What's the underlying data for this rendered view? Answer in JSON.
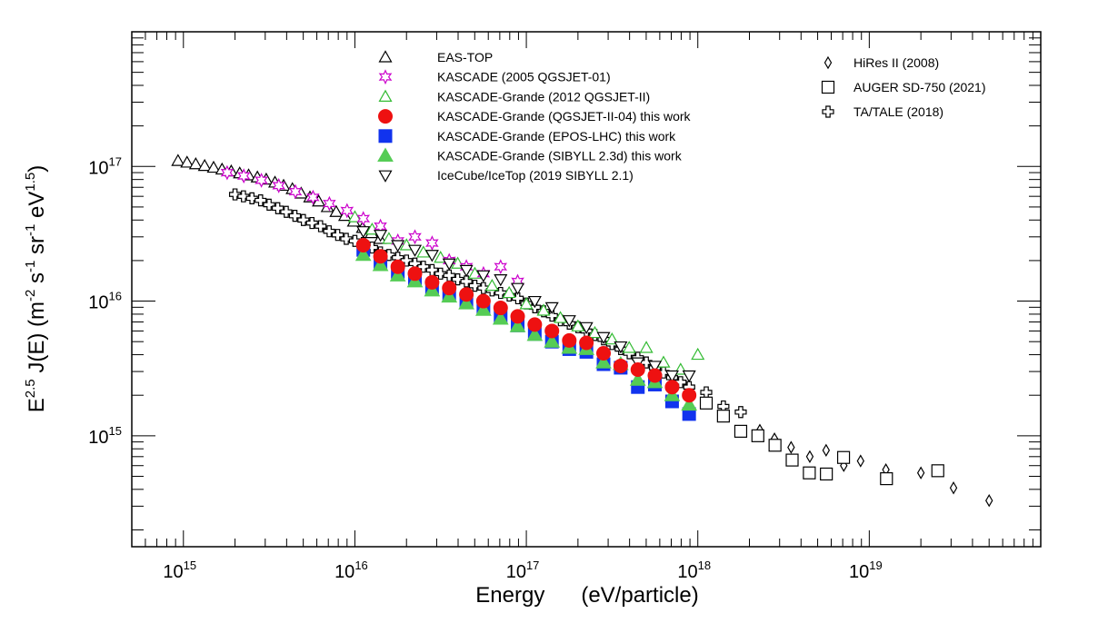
{
  "chart_data": {
    "type": "scatter",
    "title": "",
    "xlabel": "Energy      (eV/particle)",
    "ylabel_parts": {
      "a": "E",
      "b": "2.5",
      "c": " J(E) (m",
      "d": "-2",
      "e": " s",
      "f": "-1",
      "g": " sr",
      "h": "-1",
      "i": " eV",
      "j": "1.5",
      "k": ")"
    },
    "x_scale": "log",
    "y_scale": "log",
    "xlim": [
      500000000000000.0,
      1e+20
    ],
    "ylim": [
      150000000000000.0,
      1e+18
    ],
    "xticks": [
      {
        "value": 1000000000000000.0,
        "base": "10",
        "exp": "15"
      },
      {
        "value": 1e+16,
        "base": "10",
        "exp": "16"
      },
      {
        "value": 1e+17,
        "base": "10",
        "exp": "17"
      },
      {
        "value": 1e+18,
        "base": "10",
        "exp": "18"
      },
      {
        "value": 1e+19,
        "base": "10",
        "exp": "19"
      }
    ],
    "yticks": [
      {
        "value": 1000000000000000.0,
        "base": "10",
        "exp": "15"
      },
      {
        "value": 1e+16,
        "base": "10",
        "exp": "16"
      },
      {
        "value": 1e+17,
        "base": "10",
        "exp": "17"
      }
    ],
    "legend_left": [
      "EAS-TOP",
      "KASCADE (2005 QGSJET-01)",
      "KASCADE-Grande (2012 QGSJET-II)",
      "KASCADE-Grande (QGSJET-II-04) this work",
      "KASCADE-Grande (EPOS-LHC) this work",
      "KASCADE-Grande (SIBYLL 2.3d) this work",
      "IceCube/IceTop (2019 SIBYLL 2.1)"
    ],
    "legend_right": [
      "HiRes II (2008)",
      "AUGER SD-750 (2021)",
      "TA/TALE (2018)"
    ],
    "series": [
      {
        "name": "EAS-TOP",
        "marker": "triangle-up-open",
        "color": "#000000",
        "x": [
          930000000000000.0,
          1050000000000000.0,
          1180000000000000.0,
          1330000000000000.0,
          1500000000000000.0,
          1680000000000000.0,
          1900000000000000.0,
          2130000000000000.0,
          2400000000000000.0,
          2700000000000000.0,
          3040000000000000.0,
          3420000000000000.0,
          3840000000000000.0,
          4320000000000000.0,
          4860000000000000.0,
          5470000000000000.0,
          6150000000000000.0,
          6920000000000000.0,
          7780000000000000.0,
          8750000000000000.0,
          9840000000000000.0,
          1.11e+16,
          1.25e+16,
          1.4e+16
        ],
        "y": [
          1.1e+17,
          1.07e+17,
          1.04e+17,
          1.01e+17,
          9.8e+16,
          9.5e+16,
          9.2e+16,
          8.9e+16,
          8.6e+16,
          8.3e+16,
          8e+16,
          7.6e+16,
          7.2e+16,
          6.8e+16,
          6.3e+16,
          5.9e+16,
          5.5e+16,
          5e+16,
          4.6e+16,
          4.3e+16,
          3.9e+16,
          3.5e+16,
          3.2e+16,
          2.9e+16
        ]
      },
      {
        "name": "KASCADE (2005 QGSJET-01)",
        "marker": "star-open",
        "color": "#cc00cc",
        "x": [
          1800000000000000.0,
          2250000000000000.0,
          2850000000000000.0,
          3600000000000000.0,
          4500000000000000.0,
          5700000000000000.0,
          7100000000000000.0,
          9000000000000000.0,
          1.12e+16,
          1.41e+16,
          1.78e+16,
          2.24e+16,
          2.82e+16,
          3.55e+16,
          4.47e+16,
          5.62e+16,
          7.08e+16,
          8.9e+16
        ],
        "y": [
          9e+16,
          8.5e+16,
          7.9e+16,
          7.2e+16,
          6.5e+16,
          5.9e+16,
          5.3e+16,
          4.7e+16,
          4.1e+16,
          3.6e+16,
          2.8e+16,
          3e+16,
          2.7e+16,
          2e+16,
          1.8e+16,
          1.6e+16,
          1.8e+16,
          1.4e+16
        ]
      },
      {
        "name": "KASCADE-Grande (2012 QGSJET-II)",
        "marker": "triangle-up-open",
        "color": "#33bb33",
        "x": [
          1e+16,
          1.26e+16,
          1.58e+16,
          2e+16,
          2.51e+16,
          3.16e+16,
          3.98e+16,
          5.01e+16,
          6.31e+16,
          7.94e+16,
          1e+17,
          1.26e+17,
          1.58e+17,
          2e+17,
          2.51e+17,
          3.16e+17,
          3.98e+17,
          5.01e+17,
          6.31e+17,
          7.94e+17,
          1e+18
        ],
        "y": [
          4.2e+16,
          3.4e+16,
          2.9e+16,
          2.6e+16,
          2.3e+16,
          2.1e+16,
          1.9e+16,
          1.6e+16,
          1.3e+16,
          1.15e+16,
          9500000000000000.0,
          8500000000000000.0,
          7500000000000000.0,
          6500000000000000.0,
          5800000000000000.0,
          5200000000000000.0,
          4500000000000000.0,
          4500000000000000.0,
          3500000000000000.0,
          3100000000000000.0,
          4000000000000000.0
        ]
      },
      {
        "name": "KASCADE-Grande (QGSJET-II-04) this work",
        "marker": "circle-filled",
        "color": "#ee1111",
        "x": [
          1.12e+16,
          1.41e+16,
          1.78e+16,
          2.24e+16,
          2.82e+16,
          3.55e+16,
          4.47e+16,
          5.62e+16,
          7.08e+16,
          8.9e+16,
          1.12e+17,
          1.41e+17,
          1.78e+17,
          2.24e+17,
          2.82e+17,
          3.55e+17,
          4.47e+17,
          5.62e+17,
          7.08e+17,
          8.9e+17
        ],
        "y": [
          2.6e+16,
          2.15e+16,
          1.8e+16,
          1.6e+16,
          1.38e+16,
          1.25e+16,
          1.12e+16,
          1e+16,
          8900000000000000.0,
          7700000000000000.0,
          6700000000000000.0,
          6000000000000000.0,
          5100000000000000.0,
          4900000000000000.0,
          4100000000000000.0,
          3300000000000000.0,
          3100000000000000.0,
          2800000000000000.0,
          2300000000000000.0,
          2000000000000000.0
        ]
      },
      {
        "name": "KASCADE-Grande (EPOS-LHC) this work",
        "marker": "square-filled",
        "color": "#1133ee",
        "x": [
          1.12e+16,
          1.41e+16,
          1.78e+16,
          2.24e+16,
          2.82e+16,
          3.55e+16,
          4.47e+16,
          5.62e+16,
          7.08e+16,
          8.9e+16,
          1.12e+17,
          1.41e+17,
          1.78e+17,
          2.24e+17,
          2.82e+17,
          3.55e+17,
          4.47e+17,
          5.62e+17,
          7.08e+17,
          8.9e+17
        ],
        "y": [
          2.4e+16,
          1.95e+16,
          1.65e+16,
          1.45e+16,
          1.25e+16,
          1.12e+16,
          1e+16,
          8800000000000000.0,
          7600000000000000.0,
          6600000000000000.0,
          5700000000000000.0,
          5000000000000000.0,
          4400000000000000.0,
          4200000000000000.0,
          3400000000000000.0,
          3200000000000000.0,
          2300000000000000.0,
          2400000000000000.0,
          1800000000000000.0,
          1450000000000000.0
        ]
      },
      {
        "name": "KASCADE-Grande (SIBYLL 2.3d) this work",
        "marker": "triangle-up-filled",
        "color": "#55cc55",
        "x": [
          1.12e+16,
          1.41e+16,
          1.78e+16,
          2.24e+16,
          2.82e+16,
          3.55e+16,
          4.47e+16,
          5.62e+16,
          7.08e+16,
          8.9e+16,
          1.12e+17,
          1.41e+17,
          1.78e+17,
          2.24e+17,
          2.82e+17,
          3.55e+17,
          4.47e+17,
          5.62e+17,
          7.08e+17,
          8.9e+17
        ],
        "y": [
          2.2e+16,
          1.85e+16,
          1.55e+16,
          1.4e+16,
          1.2e+16,
          1.08e+16,
          9600000000000000.0,
          8600000000000000.0,
          7400000000000000.0,
          6500000000000000.0,
          5600000000000000.0,
          5000000000000000.0,
          4500000000000000.0,
          4400000000000000.0,
          3500000000000000.0,
          3400000000000000.0,
          2600000000000000.0,
          2500000000000000.0,
          2000000000000000.0,
          1700000000000000.0
        ]
      },
      {
        "name": "IceCube/IceTop (2019 SIBYLL 2.1)",
        "marker": "triangle-down-open",
        "color": "#000000",
        "x": [
          1.12e+16,
          1.41e+16,
          1.78e+16,
          2.24e+16,
          2.82e+16,
          3.55e+16,
          4.47e+16,
          5.62e+16,
          7.08e+16,
          8.9e+16,
          1.12e+17,
          1.41e+17,
          1.78e+17,
          2.24e+17,
          2.82e+17,
          3.55e+17,
          4.47e+17,
          5.62e+17,
          7.08e+17,
          8.9e+17
        ],
        "y": [
          3.3e+16,
          3.1e+16,
          2.6e+16,
          2.4e+16,
          2.2e+16,
          1.9e+16,
          1.7e+16,
          1.55e+16,
          1.45e+16,
          1.25e+16,
          1e+16,
          9000000000000000.0,
          7200000000000000.0,
          6400000000000000.0,
          5400000000000000.0,
          4600000000000000.0,
          3500000000000000.0,
          3300000000000000.0,
          2800000000000000.0,
          2800000000000000.0
        ]
      },
      {
        "name": "HiRes II (2008)",
        "marker": "diamond-open",
        "color": "#000000",
        "x": [
          2.3e+18,
          2.8e+18,
          3.5e+18,
          4.5e+18,
          5.6e+18,
          7.1e+18,
          8.9e+18,
          1.25e+19,
          2e+19,
          3.1e+19,
          5e+19
        ],
        "y": [
          1100000000000000.0,
          950000000000000.0,
          820000000000000.0,
          700000000000000.0,
          780000000000000.0,
          600000000000000.0,
          650000000000000.0,
          560000000000000.0,
          530000000000000.0,
          410000000000000.0,
          330000000000000.0
        ]
      },
      {
        "name": "AUGER SD-750 (2021)",
        "marker": "square-open",
        "color": "#000000",
        "x": [
          1.12e+18,
          1.41e+18,
          1.78e+18,
          2.24e+18,
          2.82e+18,
          3.55e+18,
          4.47e+18,
          5.62e+18,
          7.08e+18,
          1.26e+19,
          2.51e+19
        ],
        "y": [
          1750000000000000.0,
          1400000000000000.0,
          1080000000000000.0,
          1000000000000000.0,
          850000000000000.0,
          660000000000000.0,
          530000000000000.0,
          520000000000000.0,
          690000000000000.0,
          480000000000000.0,
          550000000000000.0
        ]
      },
      {
        "name": "TA/TALE (2018)",
        "marker": "cross-open",
        "color": "#000000",
        "x": [
          2000000000000000.0,
          2240000000000000.0,
          2510000000000000.0,
          2820000000000000.0,
          3160000000000000.0,
          3550000000000000.0,
          3980000000000000.0,
          4470000000000000.0,
          5010000000000000.0,
          5620000000000000.0,
          6310000000000000.0,
          7080000000000000.0,
          7940000000000000.0,
          8910000000000000.0,
          1e+16,
          1.12e+16,
          1.26e+16,
          1.41e+16,
          1.58e+16,
          1.78e+16,
          2e+16,
          2.24e+16,
          2.51e+16,
          2.82e+16,
          3.16e+16,
          3.55e+16,
          3.98e+16,
          4.47e+16,
          5.01e+16,
          5.62e+16,
          6.31e+16,
          7.08e+16,
          7.94e+16,
          8.91e+16,
          1e+17,
          1.12e+17,
          1.26e+17,
          1.41e+17,
          1.58e+17,
          1.78e+17,
          2e+17,
          2.24e+17,
          2.51e+17,
          2.82e+17,
          3.16e+17,
          3.55e+17,
          3.98e+17,
          4.47e+17,
          5.01e+17,
          5.62e+17,
          6.31e+17,
          7.08e+17,
          7.94e+17,
          8.91e+17,
          1.12e+18,
          1.41e+18,
          1.78e+18
        ],
        "y": [
          6.2e+16,
          6e+16,
          5.8e+16,
          5.6e+16,
          5.2e+16,
          4.9e+16,
          4.6e+16,
          4.3e+16,
          4e+16,
          3.8e+16,
          3.6e+16,
          3.3e+16,
          3.1e+16,
          2.9e+16,
          2.8e+16,
          2.7e+16,
          2.5e+16,
          2.3e+16,
          2.2e+16,
          2.1e+16,
          2e+16,
          1.9e+16,
          1.8e+16,
          1.7e+16,
          1.6e+16,
          1.55e+16,
          1.45e+16,
          1.4e+16,
          1.3e+16,
          1.25e+16,
          1.2e+16,
          1.15e+16,
          1.1e+16,
          1.05e+16,
          9600000000000000.0,
          9000000000000000.0,
          8400000000000000.0,
          7800000000000000.0,
          7200000000000000.0,
          6800000000000000.0,
          6400000000000000.0,
          6000000000000000.0,
          5600000000000000.0,
          5200000000000000.0,
          4800000000000000.0,
          4400000000000000.0,
          4100000000000000.0,
          3800000000000000.0,
          3500000000000000.0,
          3200000000000000.0,
          2950000000000000.0,
          2700000000000000.0,
          2500000000000000.0,
          2300000000000000.0,
          2100000000000000.0,
          1650000000000000.0,
          1500000000000000.0
        ]
      }
    ]
  }
}
